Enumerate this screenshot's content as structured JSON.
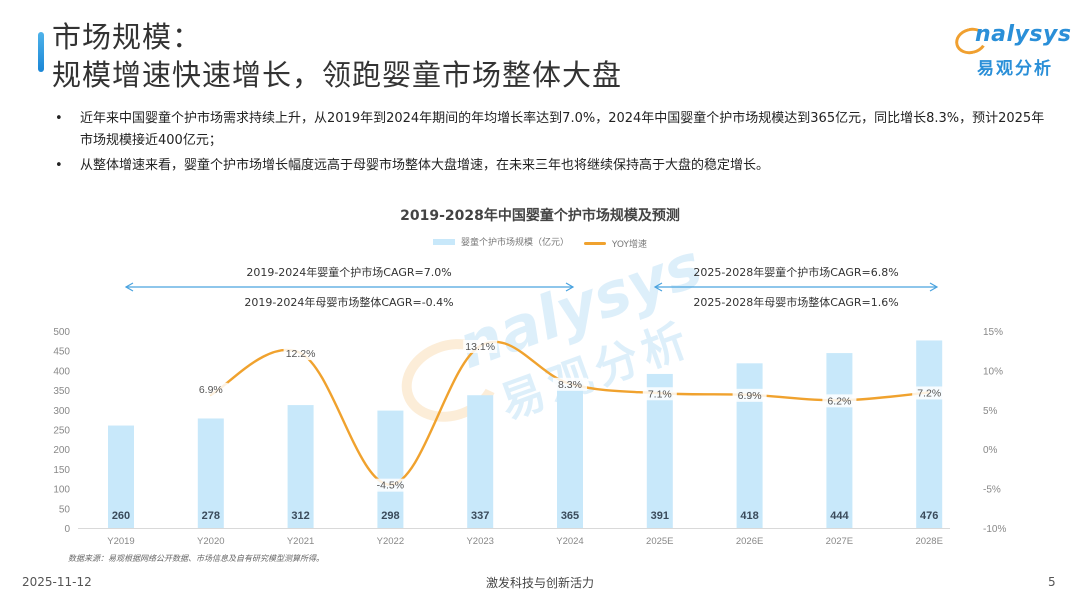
{
  "header": {
    "title_line1": "市场规模：",
    "title_line2": "规模增速快速增长，领跑婴童市场整体大盘",
    "logo_en": "nalysys",
    "logo_cn": "易观分析"
  },
  "bullets": [
    "近年来中国婴童个护市场需求持续上升，从2019年到2024年期间的年均增长率达到7.0%，2024年中国婴童个护市场规模达到365亿元，同比增长8.3%，预计2025年市场规模接近400亿元；",
    "从整体增速来看，婴童个护市场增长幅度远高于母婴市场整体大盘增速，在未来三年也将继续保持高于大盘的稳定增长。"
  ],
  "annotations": {
    "left_top": "2019-2024年婴童个护市场CAGR=7.0%",
    "left_bottom": "2019-2024年母婴市场整体CAGR=-0.4%",
    "right_top": "2025-2028年婴童个护市场CAGR=6.8%",
    "right_bottom": "2025-2028年母婴市场整体CAGR=1.6%"
  },
  "footer": {
    "source": "数据来源：易观根据网络公开数据、市场信息及自有研究模型测算所得。",
    "date": "2025-11-12",
    "center": "激发科技与创新活力",
    "page": "5"
  },
  "colors": {
    "bar": "#c8e8fa",
    "line": "#f0a22e",
    "accent": "#2a8fd8"
  },
  "chart_data": {
    "type": "bar",
    "title": "2019-2028年中国婴童个护市场规模及预测",
    "categories": [
      "Y2019",
      "Y2020",
      "Y2021",
      "Y2022",
      "Y2023",
      "Y2024",
      "2025E",
      "2026E",
      "2027E",
      "2028E"
    ],
    "series": [
      {
        "name": "婴童个护市场规模（亿元）",
        "type": "bar",
        "axis": "left",
        "values": [
          260,
          278,
          312,
          298,
          337,
          365,
          391,
          418,
          444,
          476
        ]
      },
      {
        "name": "YOY增速",
        "type": "line",
        "axis": "right",
        "values": [
          null,
          6.9,
          12.2,
          -4.5,
          13.1,
          8.3,
          7.1,
          6.9,
          6.2,
          7.2
        ],
        "labels": [
          "",
          "6.9%",
          "12.2%",
          "-4.5%",
          "13.1%",
          "8.3%",
          "7.1%",
          "6.9%",
          "6.2%",
          "7.2%"
        ]
      }
    ],
    "legend": [
      "婴童个护市场规模（亿元）",
      "YOY增速"
    ],
    "legend_position": "top",
    "y_left": {
      "ylim": [
        0,
        500
      ],
      "ticks": [
        "0",
        "50",
        "100",
        "150",
        "200",
        "250",
        "300",
        "350",
        "400",
        "450",
        "500"
      ]
    },
    "y_right": {
      "ylim": [
        -10,
        15
      ],
      "ticks": [
        "-10%",
        "-5%",
        "0%",
        "5%",
        "10%",
        "15%"
      ]
    },
    "xlabel": "",
    "ylabel": "",
    "grid": false
  }
}
